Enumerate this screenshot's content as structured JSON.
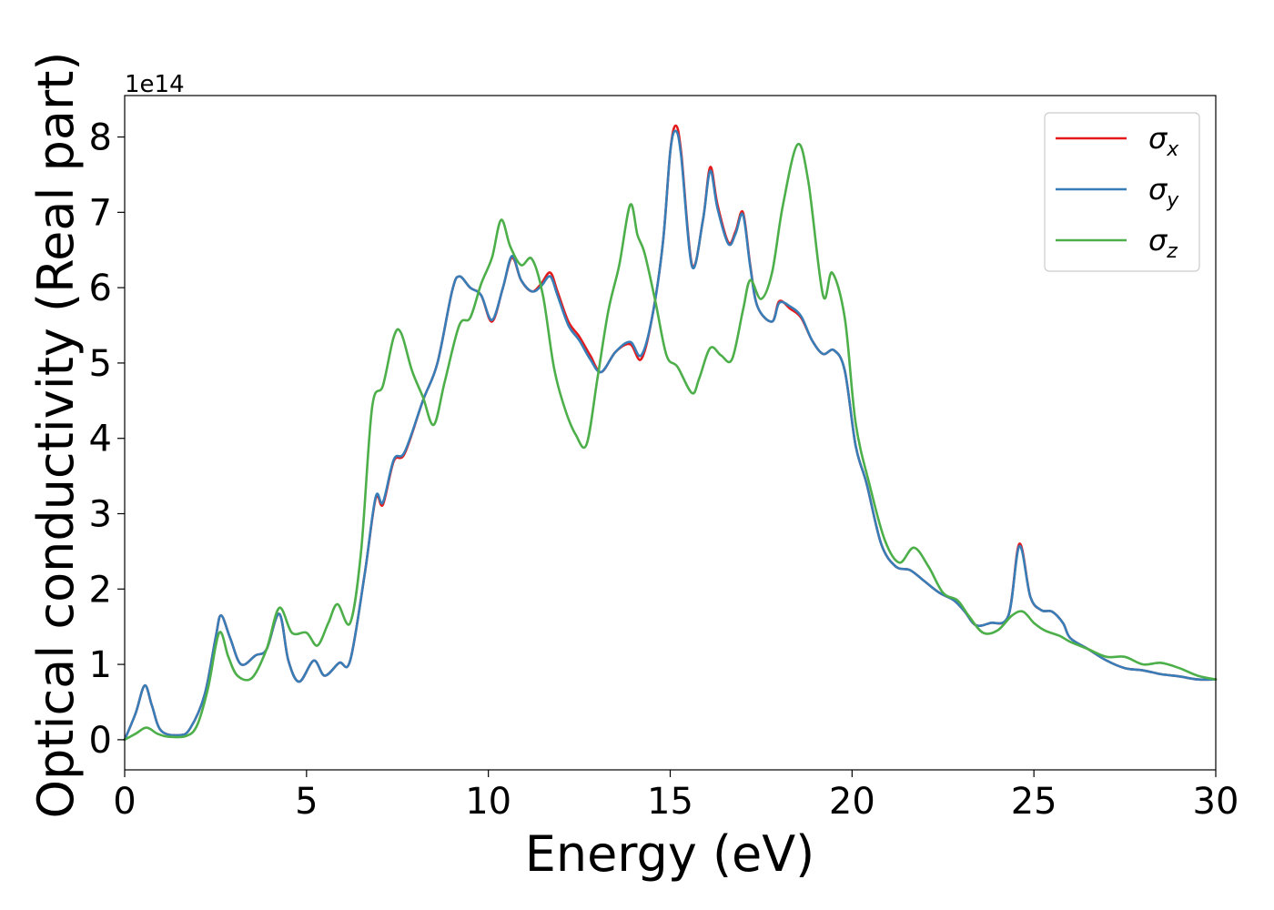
{
  "chart_data": {
    "type": "line",
    "title": "",
    "xlabel": "Energy (eV)",
    "ylabel": "Optical conductivity (Real part)",
    "y_offset_label": "1e14",
    "xlim": [
      0,
      30
    ],
    "ylim": [
      -0.4,
      8.55
    ],
    "xticks": [
      0,
      5,
      10,
      15,
      20,
      25,
      30
    ],
    "yticks": [
      0,
      1,
      2,
      3,
      4,
      5,
      6,
      7,
      8
    ],
    "grid": false,
    "legend_position": "top-right",
    "series": [
      {
        "name": "σx",
        "symbol": "σ",
        "subscript": "x",
        "color": "#e41a1c",
        "points": [
          [
            0,
            0.0
          ],
          [
            0.3,
            0.35
          ],
          [
            0.55,
            0.72
          ],
          [
            0.75,
            0.45
          ],
          [
            1.0,
            0.12
          ],
          [
            1.5,
            0.06
          ],
          [
            1.8,
            0.15
          ],
          [
            2.2,
            0.6
          ],
          [
            2.5,
            1.35
          ],
          [
            2.65,
            1.65
          ],
          [
            2.9,
            1.35
          ],
          [
            3.2,
            1.0
          ],
          [
            3.6,
            1.12
          ],
          [
            3.9,
            1.2
          ],
          [
            4.25,
            1.67
          ],
          [
            4.5,
            1.05
          ],
          [
            4.8,
            0.77
          ],
          [
            5.2,
            1.05
          ],
          [
            5.5,
            0.85
          ],
          [
            5.9,
            1.02
          ],
          [
            6.2,
            1.05
          ],
          [
            6.6,
            2.2
          ],
          [
            6.9,
            3.2
          ],
          [
            7.1,
            3.12
          ],
          [
            7.4,
            3.7
          ],
          [
            7.7,
            3.8
          ],
          [
            8.2,
            4.5
          ],
          [
            8.6,
            5.0
          ],
          [
            9.0,
            5.95
          ],
          [
            9.2,
            6.15
          ],
          [
            9.5,
            6.0
          ],
          [
            9.8,
            5.9
          ],
          [
            10.1,
            5.55
          ],
          [
            10.4,
            6.0
          ],
          [
            10.65,
            6.4
          ],
          [
            10.9,
            6.1
          ],
          [
            11.2,
            5.95
          ],
          [
            11.45,
            6.05
          ],
          [
            11.7,
            6.2
          ],
          [
            11.9,
            5.95
          ],
          [
            12.2,
            5.55
          ],
          [
            12.5,
            5.35
          ],
          [
            12.8,
            5.1
          ],
          [
            13.1,
            4.88
          ],
          [
            13.5,
            5.15
          ],
          [
            13.9,
            5.25
          ],
          [
            14.2,
            5.05
          ],
          [
            14.5,
            5.6
          ],
          [
            14.8,
            6.6
          ],
          [
            15.0,
            7.8
          ],
          [
            15.15,
            8.15
          ],
          [
            15.3,
            7.8
          ],
          [
            15.6,
            6.3
          ],
          [
            15.9,
            6.9
          ],
          [
            16.1,
            7.6
          ],
          [
            16.3,
            7.1
          ],
          [
            16.6,
            6.6
          ],
          [
            16.8,
            6.75
          ],
          [
            17.0,
            7.0
          ],
          [
            17.2,
            6.3
          ],
          [
            17.4,
            5.75
          ],
          [
            17.8,
            5.55
          ],
          [
            18.0,
            5.82
          ],
          [
            18.3,
            5.72
          ],
          [
            18.6,
            5.6
          ],
          [
            18.9,
            5.3
          ],
          [
            19.2,
            5.12
          ],
          [
            19.5,
            5.17
          ],
          [
            19.8,
            4.9
          ],
          [
            20.1,
            3.9
          ],
          [
            20.4,
            3.4
          ],
          [
            20.8,
            2.6
          ],
          [
            21.2,
            2.3
          ],
          [
            21.6,
            2.25
          ],
          [
            22.0,
            2.1
          ],
          [
            22.4,
            1.95
          ],
          [
            22.8,
            1.85
          ],
          [
            23.1,
            1.7
          ],
          [
            23.4,
            1.52
          ],
          [
            23.8,
            1.55
          ],
          [
            24.3,
            1.65
          ],
          [
            24.6,
            2.6
          ],
          [
            24.9,
            1.9
          ],
          [
            25.2,
            1.72
          ],
          [
            25.5,
            1.7
          ],
          [
            25.8,
            1.55
          ],
          [
            26.0,
            1.35
          ],
          [
            26.5,
            1.2
          ],
          [
            27.0,
            1.05
          ],
          [
            27.5,
            0.95
          ],
          [
            28.0,
            0.92
          ],
          [
            28.5,
            0.87
          ],
          [
            29.0,
            0.84
          ],
          [
            29.5,
            0.8
          ],
          [
            30.0,
            0.8
          ]
        ]
      },
      {
        "name": "σy",
        "symbol": "σ",
        "subscript": "y",
        "color": "#377eb8",
        "points": [
          [
            0,
            0.0
          ],
          [
            0.3,
            0.35
          ],
          [
            0.55,
            0.72
          ],
          [
            0.75,
            0.45
          ],
          [
            1.0,
            0.12
          ],
          [
            1.5,
            0.06
          ],
          [
            1.8,
            0.15
          ],
          [
            2.2,
            0.6
          ],
          [
            2.5,
            1.35
          ],
          [
            2.65,
            1.65
          ],
          [
            2.9,
            1.35
          ],
          [
            3.2,
            1.0
          ],
          [
            3.6,
            1.12
          ],
          [
            3.9,
            1.2
          ],
          [
            4.25,
            1.67
          ],
          [
            4.5,
            1.05
          ],
          [
            4.8,
            0.77
          ],
          [
            5.2,
            1.05
          ],
          [
            5.5,
            0.85
          ],
          [
            5.9,
            1.02
          ],
          [
            6.2,
            1.05
          ],
          [
            6.6,
            2.2
          ],
          [
            6.9,
            3.22
          ],
          [
            7.1,
            3.15
          ],
          [
            7.4,
            3.72
          ],
          [
            7.7,
            3.82
          ],
          [
            8.2,
            4.5
          ],
          [
            8.6,
            5.0
          ],
          [
            9.0,
            5.95
          ],
          [
            9.2,
            6.15
          ],
          [
            9.5,
            6.0
          ],
          [
            9.8,
            5.9
          ],
          [
            10.1,
            5.57
          ],
          [
            10.4,
            6.0
          ],
          [
            10.65,
            6.42
          ],
          [
            10.9,
            6.1
          ],
          [
            11.2,
            5.95
          ],
          [
            11.45,
            6.02
          ],
          [
            11.7,
            6.15
          ],
          [
            11.9,
            5.9
          ],
          [
            12.2,
            5.5
          ],
          [
            12.5,
            5.3
          ],
          [
            12.8,
            5.05
          ],
          [
            13.1,
            4.88
          ],
          [
            13.5,
            5.15
          ],
          [
            13.9,
            5.28
          ],
          [
            14.2,
            5.1
          ],
          [
            14.5,
            5.6
          ],
          [
            14.8,
            6.6
          ],
          [
            15.0,
            7.8
          ],
          [
            15.15,
            8.08
          ],
          [
            15.3,
            7.75
          ],
          [
            15.6,
            6.28
          ],
          [
            15.9,
            6.9
          ],
          [
            16.1,
            7.55
          ],
          [
            16.3,
            7.05
          ],
          [
            16.6,
            6.58
          ],
          [
            16.8,
            6.72
          ],
          [
            17.0,
            6.97
          ],
          [
            17.2,
            6.28
          ],
          [
            17.4,
            5.75
          ],
          [
            17.8,
            5.55
          ],
          [
            18.0,
            5.8
          ],
          [
            18.3,
            5.75
          ],
          [
            18.6,
            5.62
          ],
          [
            18.9,
            5.3
          ],
          [
            19.2,
            5.12
          ],
          [
            19.5,
            5.17
          ],
          [
            19.8,
            4.9
          ],
          [
            20.1,
            3.9
          ],
          [
            20.4,
            3.4
          ],
          [
            20.8,
            2.6
          ],
          [
            21.2,
            2.3
          ],
          [
            21.6,
            2.25
          ],
          [
            22.0,
            2.1
          ],
          [
            22.4,
            1.95
          ],
          [
            22.8,
            1.85
          ],
          [
            23.1,
            1.7
          ],
          [
            23.4,
            1.52
          ],
          [
            23.8,
            1.55
          ],
          [
            24.3,
            1.65
          ],
          [
            24.6,
            2.57
          ],
          [
            24.9,
            1.9
          ],
          [
            25.2,
            1.72
          ],
          [
            25.5,
            1.7
          ],
          [
            25.8,
            1.55
          ],
          [
            26.0,
            1.35
          ],
          [
            26.5,
            1.2
          ],
          [
            27.0,
            1.05
          ],
          [
            27.5,
            0.95
          ],
          [
            28.0,
            0.92
          ],
          [
            28.5,
            0.87
          ],
          [
            29.0,
            0.84
          ],
          [
            29.5,
            0.8
          ],
          [
            30.0,
            0.8
          ]
        ]
      },
      {
        "name": "σz",
        "symbol": "σ",
        "subscript": "z",
        "color": "#4daf4a",
        "points": [
          [
            0,
            0.0
          ],
          [
            0.3,
            0.08
          ],
          [
            0.6,
            0.16
          ],
          [
            0.9,
            0.08
          ],
          [
            1.2,
            0.04
          ],
          [
            1.7,
            0.05
          ],
          [
            2.0,
            0.2
          ],
          [
            2.3,
            0.7
          ],
          [
            2.6,
            1.42
          ],
          [
            2.85,
            1.1
          ],
          [
            3.1,
            0.85
          ],
          [
            3.5,
            0.82
          ],
          [
            3.9,
            1.2
          ],
          [
            4.25,
            1.75
          ],
          [
            4.6,
            1.42
          ],
          [
            5.0,
            1.42
          ],
          [
            5.3,
            1.25
          ],
          [
            5.6,
            1.55
          ],
          [
            5.85,
            1.8
          ],
          [
            6.2,
            1.55
          ],
          [
            6.5,
            2.5
          ],
          [
            6.8,
            4.4
          ],
          [
            7.1,
            4.7
          ],
          [
            7.4,
            5.35
          ],
          [
            7.6,
            5.4
          ],
          [
            7.9,
            4.9
          ],
          [
            8.2,
            4.55
          ],
          [
            8.5,
            4.18
          ],
          [
            8.8,
            4.75
          ],
          [
            9.2,
            5.5
          ],
          [
            9.5,
            5.6
          ],
          [
            9.8,
            6.05
          ],
          [
            10.1,
            6.4
          ],
          [
            10.35,
            6.9
          ],
          [
            10.6,
            6.55
          ],
          [
            10.9,
            6.3
          ],
          [
            11.2,
            6.38
          ],
          [
            11.5,
            5.9
          ],
          [
            11.8,
            4.95
          ],
          [
            12.1,
            4.4
          ],
          [
            12.4,
            4.05
          ],
          [
            12.7,
            3.92
          ],
          [
            13.0,
            4.8
          ],
          [
            13.3,
            5.7
          ],
          [
            13.6,
            6.3
          ],
          [
            13.9,
            7.1
          ],
          [
            14.1,
            6.7
          ],
          [
            14.3,
            6.45
          ],
          [
            14.6,
            5.8
          ],
          [
            14.9,
            5.1
          ],
          [
            15.2,
            4.95
          ],
          [
            15.6,
            4.6
          ],
          [
            15.8,
            4.8
          ],
          [
            16.1,
            5.2
          ],
          [
            16.4,
            5.1
          ],
          [
            16.7,
            5.05
          ],
          [
            17.0,
            5.7
          ],
          [
            17.2,
            6.1
          ],
          [
            17.5,
            5.85
          ],
          [
            17.8,
            6.2
          ],
          [
            18.1,
            7.1
          ],
          [
            18.5,
            7.9
          ],
          [
            18.8,
            7.4
          ],
          [
            19.2,
            5.9
          ],
          [
            19.45,
            6.2
          ],
          [
            19.8,
            5.6
          ],
          [
            20.1,
            4.2
          ],
          [
            20.5,
            3.35
          ],
          [
            20.9,
            2.65
          ],
          [
            21.3,
            2.35
          ],
          [
            21.7,
            2.55
          ],
          [
            22.1,
            2.3
          ],
          [
            22.5,
            1.95
          ],
          [
            22.9,
            1.85
          ],
          [
            23.2,
            1.65
          ],
          [
            23.6,
            1.42
          ],
          [
            24.0,
            1.45
          ],
          [
            24.4,
            1.65
          ],
          [
            24.7,
            1.7
          ],
          [
            25.0,
            1.55
          ],
          [
            25.3,
            1.45
          ],
          [
            25.7,
            1.38
          ],
          [
            26.0,
            1.3
          ],
          [
            26.5,
            1.2
          ],
          [
            27.0,
            1.1
          ],
          [
            27.5,
            1.1
          ],
          [
            28.0,
            1.0
          ],
          [
            28.5,
            1.02
          ],
          [
            29.0,
            0.95
          ],
          [
            29.5,
            0.85
          ],
          [
            30.0,
            0.8
          ]
        ]
      }
    ]
  }
}
